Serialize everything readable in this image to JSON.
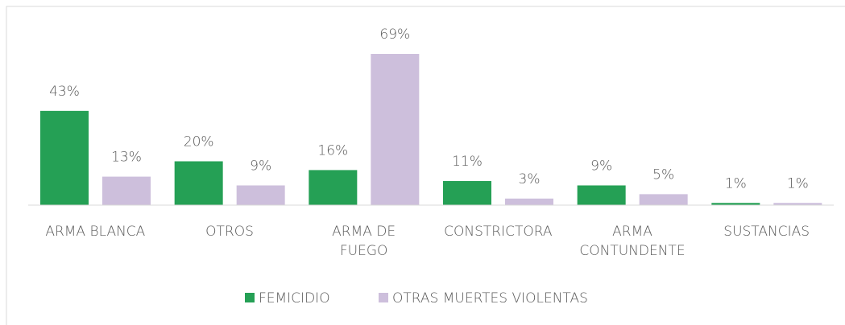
{
  "chart_data": {
    "type": "bar",
    "categories": [
      "ARMA BLANCA",
      "OTROS",
      "ARMA DE\nFUEGO",
      "CONSTRICTORA",
      "ARMA\nCONTUNDENTE",
      "SUSTANCIAS"
    ],
    "series": [
      {
        "name": "FEMICIDIO",
        "color": "#25a055",
        "values": [
          43,
          20,
          16,
          11,
          9,
          1
        ],
        "value_labels": [
          "43%",
          "20%",
          "16%",
          "11%",
          "9%",
          "1%"
        ]
      },
      {
        "name": "OTRAS MUERTES VIOLENTAS",
        "color": "#cdbfdc",
        "values": [
          13,
          9,
          69,
          3,
          5,
          1
        ],
        "value_labels": [
          "13%",
          "9%",
          "69%",
          "3%",
          "5%",
          "1%"
        ]
      }
    ],
    "legend": "bottom"
  }
}
